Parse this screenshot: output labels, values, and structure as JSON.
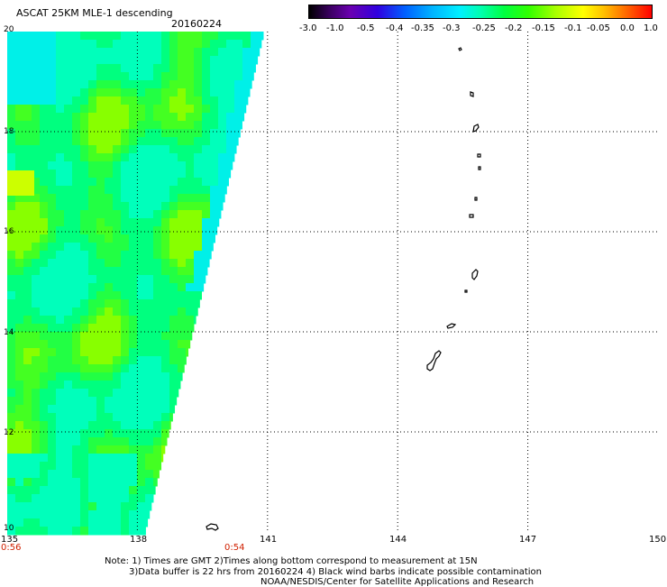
{
  "header": {
    "title": "ASCAT 25KM MLE-1 descending",
    "date": "20160224"
  },
  "colorbar": {
    "labels": [
      "-3.0",
      "-1.0",
      "-0.5",
      "-0.4",
      "-0.35",
      "-0.3",
      "-0.25",
      "-0.2",
      "-0.15",
      "-0.1",
      "-0.05",
      "0.0",
      "1.0"
    ]
  },
  "axes": {
    "x_labels": [
      "135",
      "138",
      "141",
      "144",
      "147",
      "150"
    ],
    "y_labels": [
      "20",
      "18",
      "16",
      "14",
      "12",
      "10"
    ],
    "time_left": "0:56",
    "time_mid": "0:54"
  },
  "notes": {
    "line1": "Note: 1) Times are GMT 2)Times along bottom correspond to measurement at 15N",
    "line2": "3)Data buffer is 22 hrs from 20160224 4) Black wind barbs indicate possible contamination",
    "line3": "NOAA/NESDIS/Center for Satellite Applications and Research"
  },
  "map": {
    "lon_range": [
      135,
      150
    ],
    "lat_range": [
      10,
      20
    ],
    "grid": true,
    "swath_colors": [
      "#00ff7f",
      "#22ff44",
      "#44ff22",
      "#00ffbb",
      "#00f0e8",
      "#88ff00",
      "#ccff00"
    ]
  }
}
